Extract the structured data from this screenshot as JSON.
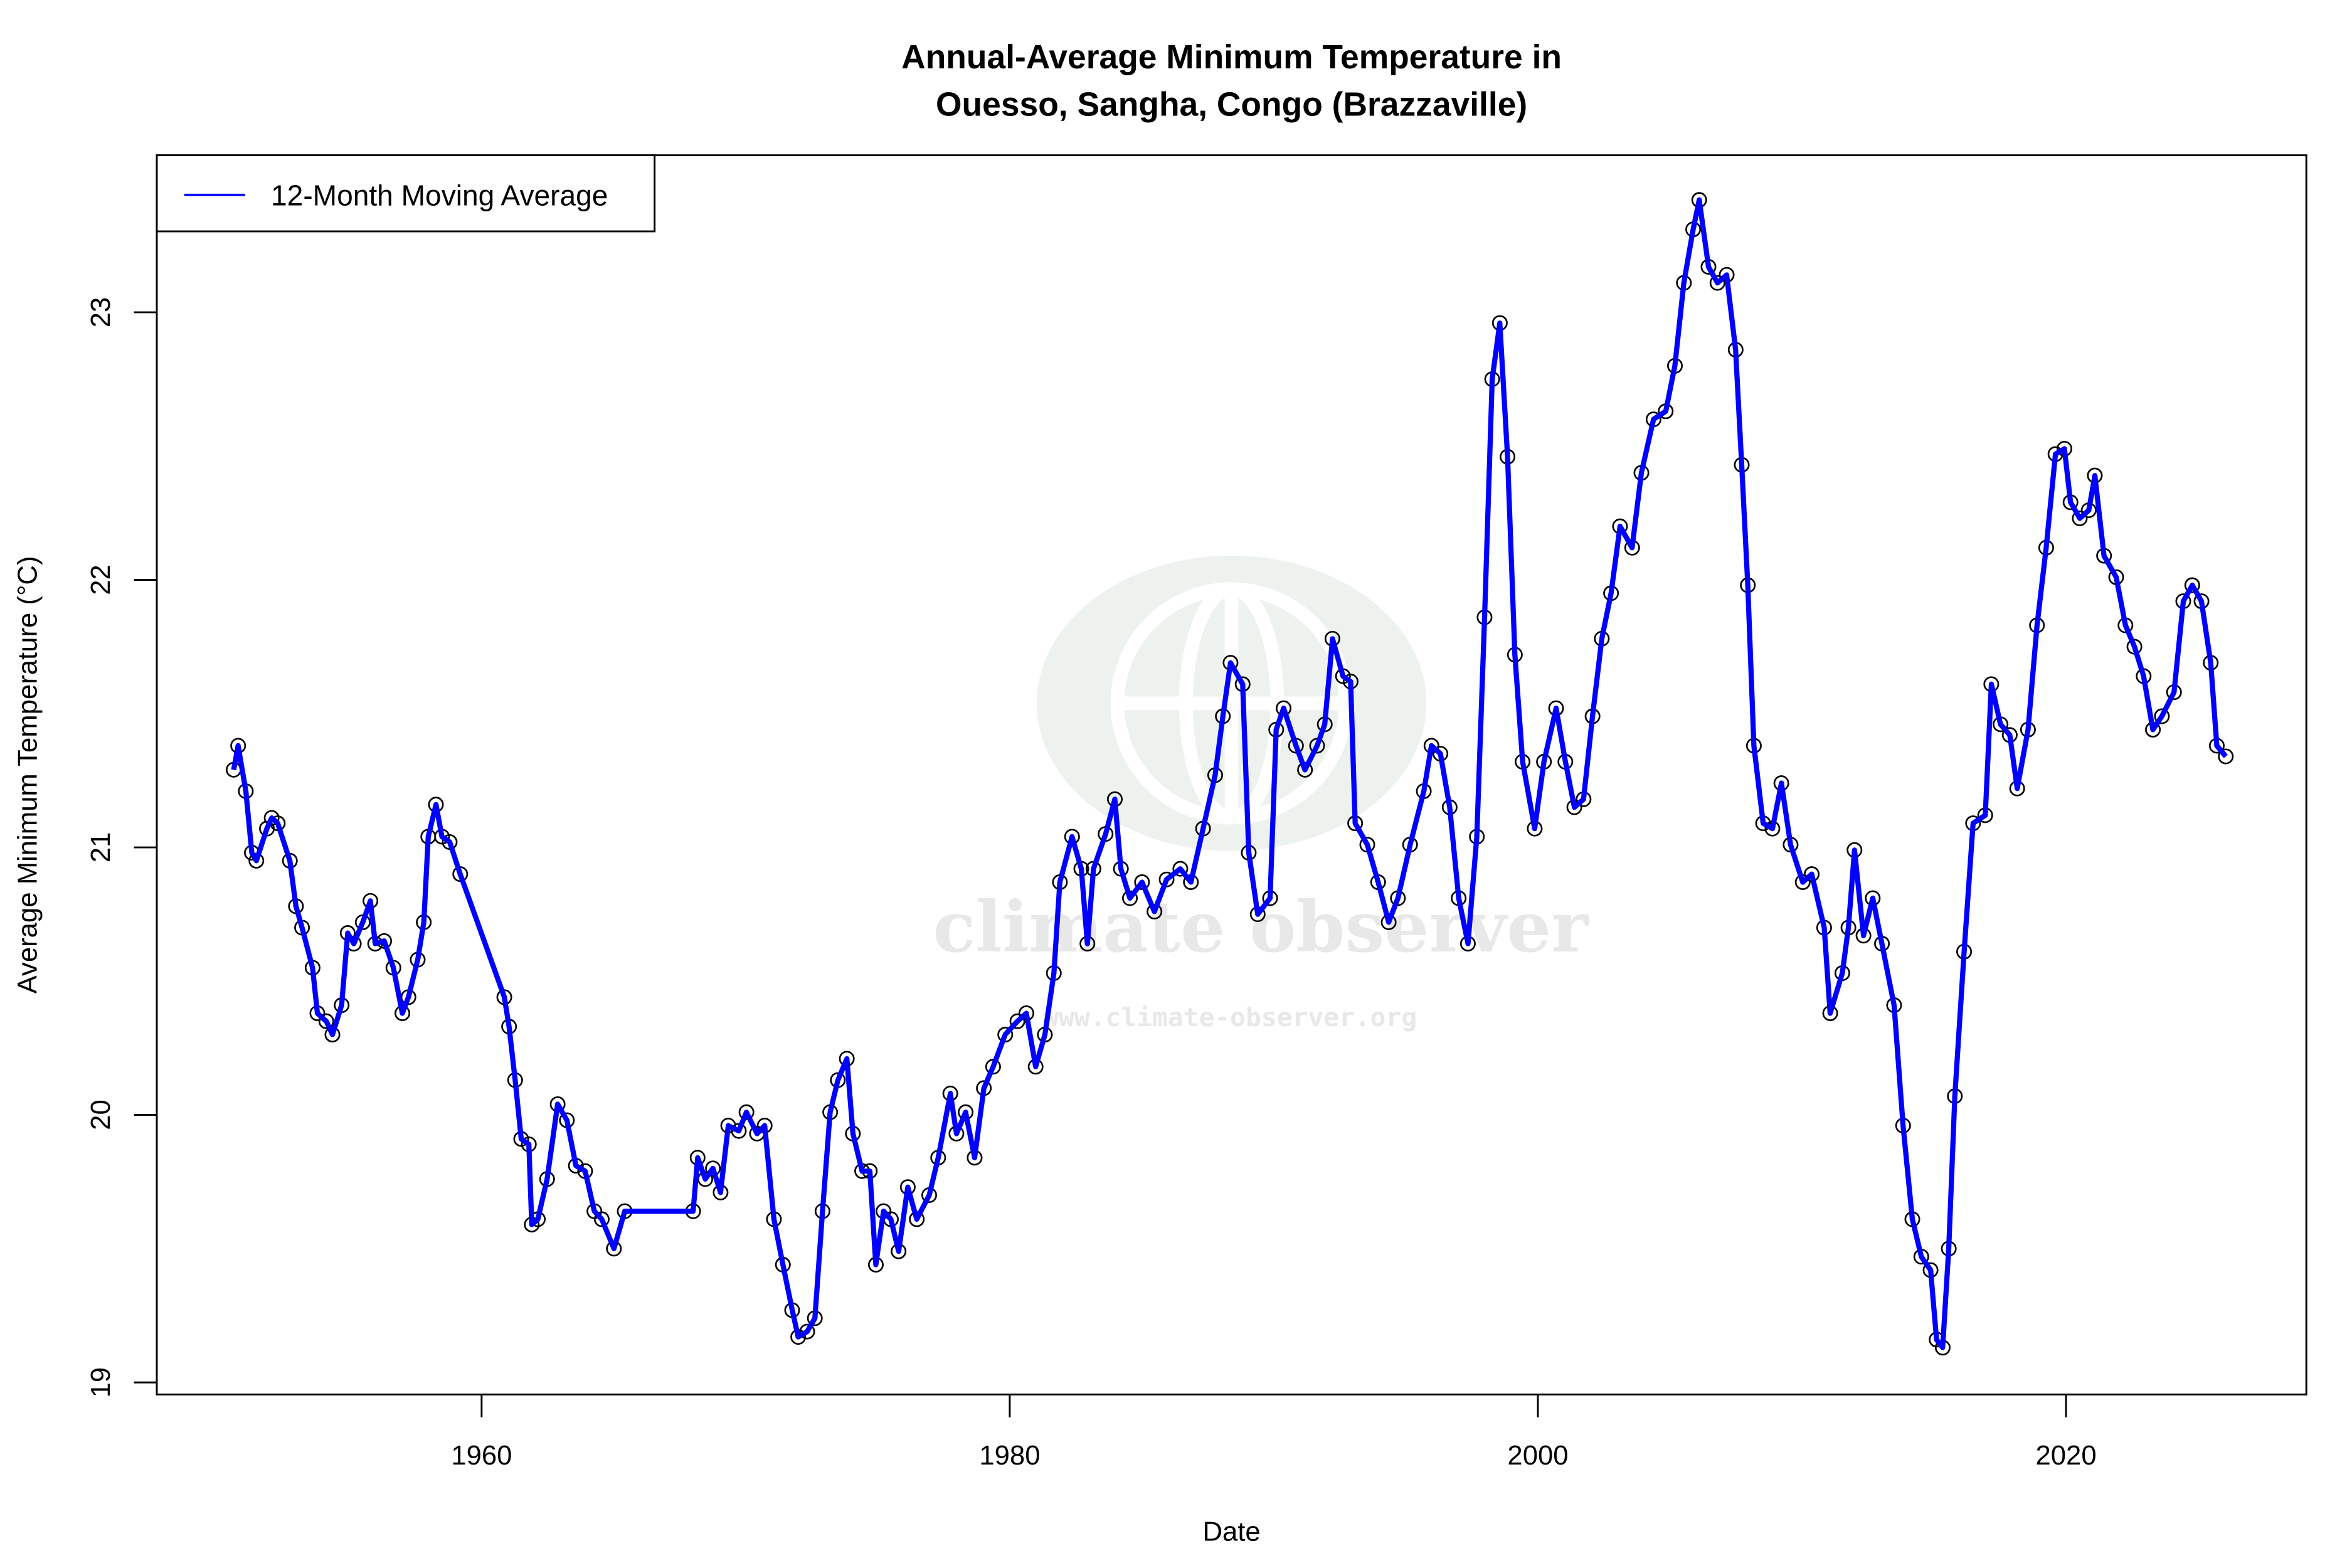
{
  "chart_data": {
    "type": "line",
    "title_line1": "Annual-Average Minimum Temperature in",
    "title_line2": "Ouesso, Sangha, Congo (Brazzaville)",
    "xlabel": "Date",
    "ylabel": "Average Minimum Temperature (°C)",
    "xlim": [
      1947.7,
      2029.1
    ],
    "ylim": [
      18.955,
      23.587
    ],
    "xticks": [
      1960,
      1980,
      2000,
      2020
    ],
    "yticks": [
      19,
      20,
      21,
      22,
      23
    ],
    "grid": false,
    "legend": {
      "placement": "top-left",
      "entries": [
        "12-Month Moving Average"
      ]
    },
    "series": [
      {
        "name": "12-Month Moving Average",
        "color": "#0000ff",
        "markers": "open-circle-black",
        "x": [
          1950.61,
          1950.78,
          1951.07,
          1951.3,
          1951.47,
          1951.87,
          1952.05,
          1952.28,
          1952.74,
          1952.97,
          1953.2,
          1953.6,
          1953.78,
          1954.12,
          1954.35,
          1954.7,
          1954.93,
          1955.16,
          1955.5,
          1955.79,
          1955.97,
          1956.31,
          1956.66,
          1957.0,
          1957.23,
          1957.58,
          1957.81,
          1957.98,
          1958.27,
          1958.5,
          1958.79,
          1959.19,
          1960.86,
          1961.04,
          1961.27,
          1961.5,
          1961.79,
          1961.9,
          1962.13,
          1962.48,
          1962.88,
          1963.23,
          1963.57,
          1963.92,
          1964.27,
          1964.55,
          1965.01,
          1965.42,
          1968.01,
          1968.18,
          1968.47,
          1968.76,
          1969.05,
          1969.34,
          1969.74,
          1970.03,
          1970.43,
          1970.72,
          1971.07,
          1971.41,
          1971.76,
          1971.99,
          1972.33,
          1972.62,
          1972.91,
          1973.2,
          1973.49,
          1973.83,
          1974.06,
          1974.41,
          1974.7,
          1974.93,
          1975.22,
          1975.5,
          1975.79,
          1976.14,
          1976.48,
          1976.95,
          1977.29,
          1977.75,
          1977.98,
          1978.33,
          1978.67,
          1979.02,
          1979.37,
          1979.83,
          1980.29,
          1980.63,
          1980.98,
          1981.33,
          1981.67,
          1981.9,
          1982.36,
          1982.71,
          1982.94,
          1983.17,
          1983.63,
          1983.98,
          1984.21,
          1984.55,
          1985.01,
          1985.48,
          1985.94,
          1986.46,
          1986.86,
          1987.32,
          1987.78,
          1988.07,
          1988.36,
          1988.82,
          1989.05,
          1989.39,
          1989.86,
          1990.09,
          1990.37,
          1990.84,
          1991.18,
          1991.64,
          1991.93,
          1992.22,
          1992.62,
          1992.91,
          1993.08,
          1993.54,
          1993.95,
          1994.35,
          1994.7,
          1995.16,
          1995.68,
          1995.97,
          1996.31,
          1996.66,
          1997.0,
          1997.35,
          1997.69,
          1997.98,
          1998.27,
          1998.56,
          1998.85,
          1999.13,
          1999.42,
          1999.88,
          2000.23,
          2000.69,
          2001.04,
          2001.38,
          2001.73,
          2002.07,
          2002.42,
          2002.77,
          2003.11,
          2003.57,
          2003.92,
          2004.38,
          2004.84,
          2005.19,
          2005.53,
          2005.88,
          2006.11,
          2006.46,
          2006.8,
          2007.15,
          2007.49,
          2007.72,
          2007.95,
          2008.18,
          2008.53,
          2008.88,
          2009.22,
          2009.57,
          2010.03,
          2010.37,
          2010.84,
          2011.07,
          2011.53,
          2011.76,
          2011.99,
          2012.33,
          2012.68,
          2013.03,
          2013.49,
          2013.83,
          2014.18,
          2014.52,
          2014.87,
          2015.1,
          2015.33,
          2015.56,
          2015.79,
          2016.14,
          2016.48,
          2016.94,
          2017.17,
          2017.52,
          2017.87,
          2018.15,
          2018.56,
          2018.9,
          2019.25,
          2019.6,
          2019.94,
          2020.17,
          2020.52,
          2020.86,
          2021.09,
          2021.44,
          2021.9,
          2022.25,
          2022.59,
          2022.94,
          2023.29,
          2023.63,
          2024.09,
          2024.44,
          2024.78,
          2025.13,
          2025.48,
          2025.71,
          2026.05
        ],
        "y": [
          21.29,
          21.38,
          21.21,
          20.98,
          20.95,
          21.07,
          21.11,
          21.09,
          20.95,
          20.78,
          20.7,
          20.55,
          20.38,
          20.35,
          20.3,
          20.41,
          20.68,
          20.64,
          20.72,
          20.8,
          20.64,
          20.65,
          20.55,
          20.38,
          20.44,
          20.58,
          20.72,
          21.04,
          21.16,
          21.04,
          21.02,
          20.9,
          20.44,
          20.33,
          20.13,
          19.91,
          19.89,
          19.59,
          19.61,
          19.76,
          20.04,
          19.98,
          19.81,
          19.79,
          19.64,
          19.61,
          19.5,
          19.64,
          19.64,
          19.84,
          19.76,
          19.8,
          19.71,
          19.96,
          19.94,
          20.01,
          19.93,
          19.96,
          19.61,
          19.44,
          19.27,
          19.17,
          19.19,
          19.24,
          19.64,
          20.01,
          20.13,
          20.21,
          19.93,
          19.79,
          19.79,
          19.44,
          19.64,
          19.61,
          19.49,
          19.73,
          19.61,
          19.7,
          19.84,
          20.08,
          19.93,
          20.01,
          19.84,
          20.1,
          20.18,
          20.3,
          20.35,
          20.38,
          20.18,
          20.3,
          20.53,
          20.87,
          21.04,
          20.92,
          20.64,
          20.92,
          21.05,
          21.18,
          20.92,
          20.81,
          20.87,
          20.76,
          20.88,
          20.92,
          20.87,
          21.07,
          21.27,
          21.49,
          21.69,
          21.61,
          20.98,
          20.75,
          20.81,
          21.44,
          21.52,
          21.38,
          21.29,
          21.38,
          21.46,
          21.78,
          21.64,
          21.62,
          21.09,
          21.01,
          20.87,
          20.72,
          20.81,
          21.01,
          21.21,
          21.38,
          21.35,
          21.15,
          20.81,
          20.64,
          21.04,
          21.86,
          22.75,
          22.96,
          22.46,
          21.72,
          21.32,
          21.07,
          21.32,
          21.52,
          21.32,
          21.15,
          21.18,
          21.49,
          21.78,
          21.95,
          22.2,
          22.12,
          22.4,
          22.6,
          22.63,
          22.8,
          23.11,
          23.31,
          23.42,
          23.17,
          23.11,
          23.14,
          22.86,
          22.43,
          21.98,
          21.38,
          21.09,
          21.07,
          21.24,
          21.01,
          20.87,
          20.9,
          20.7,
          20.38,
          20.53,
          20.7,
          20.99,
          20.67,
          20.81,
          20.64,
          20.41,
          19.96,
          19.61,
          19.47,
          19.42,
          19.16,
          19.13,
          19.5,
          20.07,
          20.61,
          21.09,
          21.12,
          21.61,
          21.46,
          21.42,
          21.22,
          21.44,
          21.83,
          22.12,
          22.47,
          22.49,
          22.29,
          22.23,
          22.26,
          22.39,
          22.09,
          22.01,
          21.83,
          21.75,
          21.64,
          21.44,
          21.49,
          21.58,
          21.92,
          21.98,
          21.92,
          21.69,
          21.38,
          21.34
        ]
      }
    ]
  },
  "watermark": {
    "brand": "climate observer",
    "url": "www.climate-observer.org"
  }
}
